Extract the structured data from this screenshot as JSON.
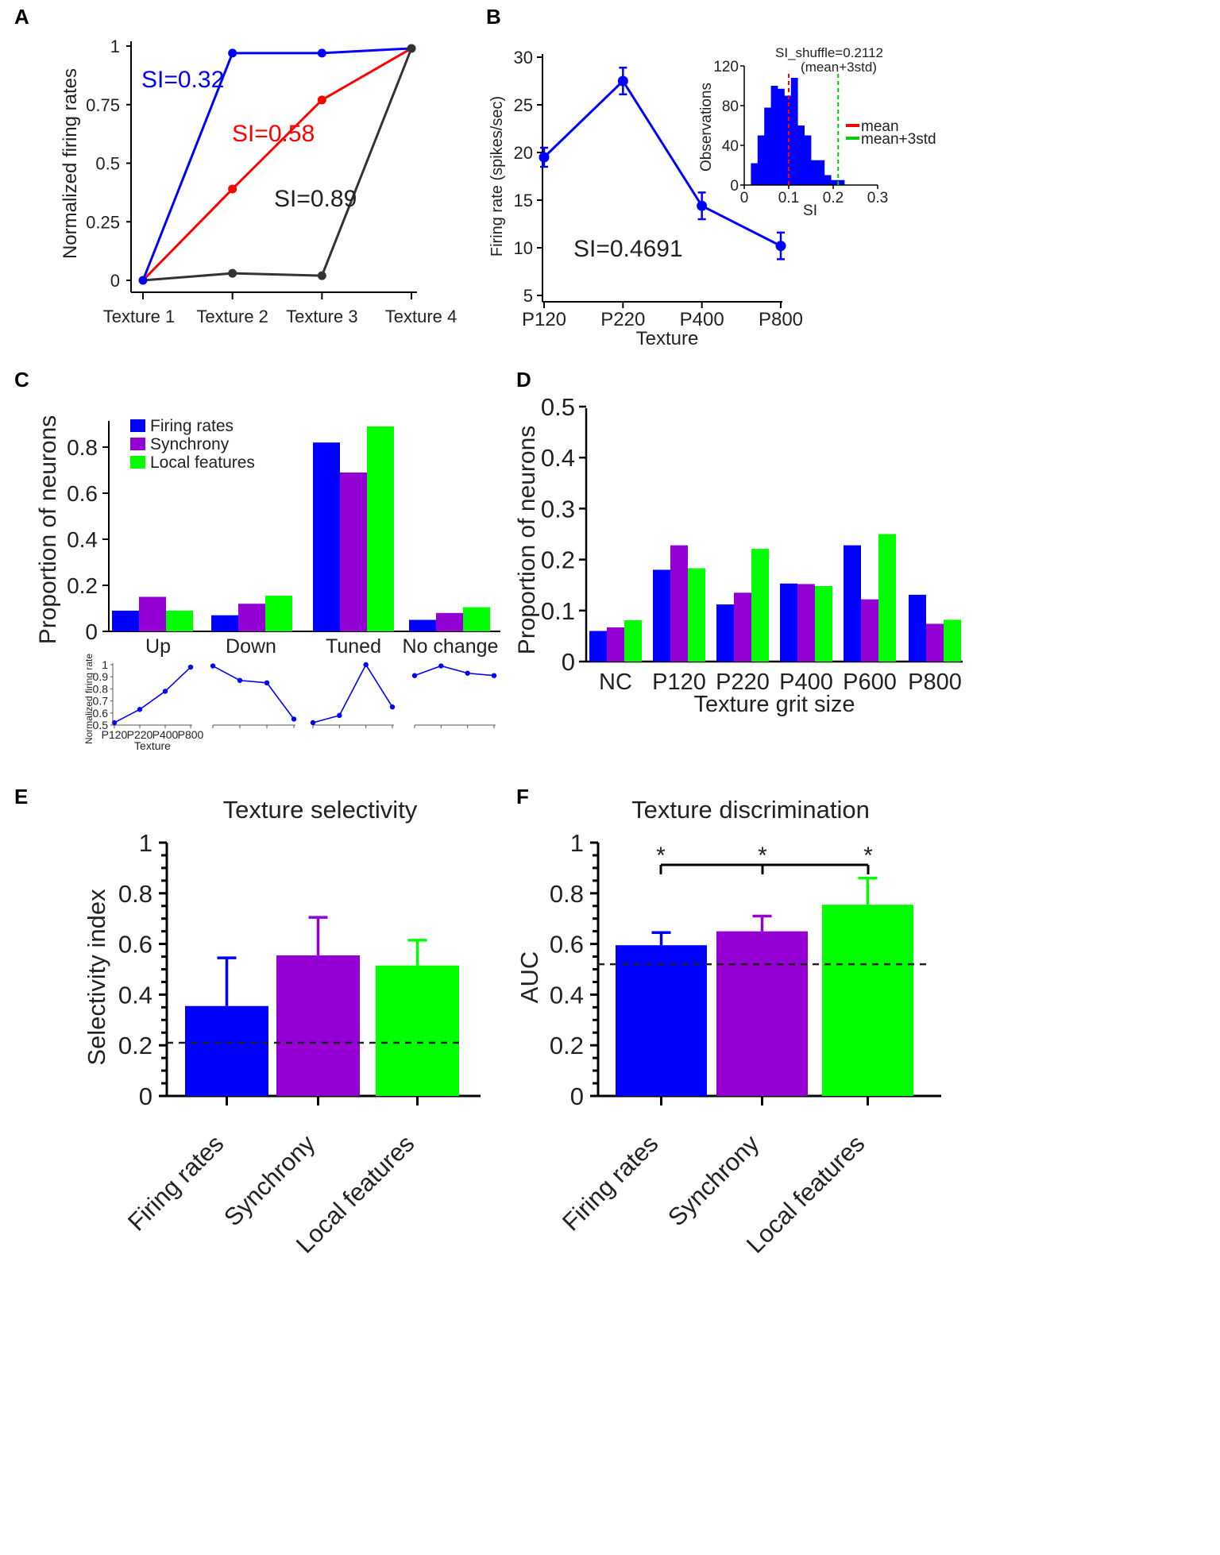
{
  "colors": {
    "blue": "#0000ff",
    "purple": "#9400d3",
    "green": "#00ff00",
    "red": "#ff0000",
    "dark": "#333333",
    "inset_hist": "#0000ff",
    "mean_line": "#ff0000",
    "std_line": "#00cc00"
  },
  "chart_data": [
    {
      "id": "A",
      "panel_label": "A",
      "type": "line",
      "title": "",
      "xlabel": "",
      "ylabel": "Normalized firing rates",
      "categories": [
        "Texture 1",
        "Texture 2",
        "Texture 3",
        "Texture 4"
      ],
      "ylim": [
        0,
        1
      ],
      "yticks": [
        0,
        0.25,
        0.5,
        0.75,
        1
      ],
      "ytick_labels": [
        "0",
        "0.25",
        "0.5",
        "0.75",
        "1"
      ],
      "series": [
        {
          "name": "SI=0.32",
          "color": "#0000ff",
          "values": [
            0,
            0.97,
            0.97,
            0.99
          ]
        },
        {
          "name": "SI=0.58",
          "color": "#ff0000",
          "values": [
            0,
            0.39,
            0.77,
            0.99
          ]
        },
        {
          "name": "SI=0.89",
          "color": "#333333",
          "values": [
            0,
            0.03,
            0.02,
            0.99
          ]
        }
      ],
      "annotations": [
        "SI=0.32",
        "SI=0.58",
        "SI=0.89"
      ]
    },
    {
      "id": "B",
      "panel_label": "B",
      "type": "line",
      "xlabel": "Texture",
      "ylabel": "Firing rate (spikes/sec)",
      "categories": [
        "P120",
        "P220",
        "P400",
        "P800"
      ],
      "ylim": [
        5,
        30
      ],
      "yticks": [
        5,
        10,
        15,
        20,
        25,
        30
      ],
      "series": [
        {
          "name": "Firing rate",
          "color": "#0000ff",
          "values": [
            19.5,
            27.5,
            14.4,
            10.2
          ],
          "errors": [
            1.0,
            1.4,
            1.4,
            1.4
          ]
        }
      ],
      "annotation": "SI=0.4691",
      "inset": {
        "type": "histogram",
        "xlabel": "SI",
        "ylabel": "Observations",
        "xlim": [
          0,
          0.3
        ],
        "xticks": [
          0,
          0.1,
          0.2,
          0.3
        ],
        "xtick_labels": [
          "0",
          "0.1",
          "0.2",
          "0.3"
        ],
        "ylim": [
          0,
          120
        ],
        "yticks": [
          0,
          40,
          80,
          120
        ],
        "bin_width": 0.015,
        "bin_starts": [
          0.015,
          0.03,
          0.045,
          0.06,
          0.075,
          0.09,
          0.105,
          0.12,
          0.135,
          0.15,
          0.165,
          0.18,
          0.195,
          0.21
        ],
        "counts": [
          22,
          50,
          78,
          100,
          97,
          90,
          108,
          60,
          50,
          25,
          25,
          10,
          5,
          5
        ],
        "mean": 0.1,
        "mean_plus_3std": 0.2112,
        "annotation_line1": "SI_shuffle=0.2112",
        "annotation_line2": "(mean+3std)",
        "legend": [
          "mean",
          "mean+3std"
        ]
      }
    },
    {
      "id": "C",
      "panel_label": "C",
      "type": "bar",
      "ylabel": "Proportion of neurons",
      "categories": [
        "Up",
        "Down",
        "Tuned",
        "No change"
      ],
      "ylim": [
        0,
        0.9
      ],
      "yticks": [
        0,
        0.2,
        0.4,
        0.6,
        0.8
      ],
      "ytick_labels": [
        "0",
        "0.2",
        "0.4",
        "0.6",
        "0.8"
      ],
      "series": [
        {
          "name": "Firing rates",
          "color": "#0000ff",
          "values": [
            0.09,
            0.07,
            0.82,
            0.05
          ]
        },
        {
          "name": "Synchrony",
          "color": "#9400d3",
          "values": [
            0.15,
            0.12,
            0.69,
            0.08
          ]
        },
        {
          "name": "Local features",
          "color": "#00ff00",
          "values": [
            0.09,
            0.155,
            0.89,
            0.105
          ]
        }
      ],
      "legend_position": "top-left",
      "mini_plots": {
        "ylabel": "Normalized firing rate",
        "xlabel": "Texture",
        "categories": [
          "P120",
          "P220",
          "P400",
          "P800"
        ],
        "ylim": [
          0.5,
          1.0
        ],
        "yticks": [
          0.5,
          0.6,
          0.7,
          0.8,
          0.9,
          1
        ],
        "ytick_labels": [
          "0.5",
          "0.6",
          "0.7",
          "0.8",
          "0.9",
          "1"
        ],
        "profiles": [
          [
            0.52,
            0.63,
            0.78,
            0.98
          ],
          [
            0.99,
            0.87,
            0.85,
            0.55
          ],
          [
            0.52,
            0.58,
            1.0,
            0.65
          ],
          [
            0.91,
            0.99,
            0.93,
            0.91
          ]
        ]
      }
    },
    {
      "id": "D",
      "panel_label": "D",
      "type": "bar",
      "xlabel": "Texture grit size",
      "ylabel": "Proportion of neurons",
      "categories": [
        "NC",
        "P120",
        "P220",
        "P400",
        "P600",
        "P800"
      ],
      "ylim": [
        0,
        0.5
      ],
      "yticks": [
        0,
        0.1,
        0.2,
        0.3,
        0.4,
        0.5
      ],
      "ytick_labels": [
        "0",
        "0.1",
        "0.2",
        "0.3",
        "0.4",
        "0.5"
      ],
      "series": [
        {
          "name": "Firing rates",
          "color": "#0000ff",
          "values": [
            0.06,
            0.18,
            0.112,
            0.153,
            0.228,
            0.131
          ]
        },
        {
          "name": "Synchrony",
          "color": "#9400d3",
          "values": [
            0.067,
            0.228,
            0.135,
            0.152,
            0.122,
            0.074
          ]
        },
        {
          "name": "Local features",
          "color": "#00ff00",
          "values": [
            0.081,
            0.183,
            0.221,
            0.148,
            0.25,
            0.082
          ]
        }
      ]
    },
    {
      "id": "E",
      "panel_label": "E",
      "type": "bar",
      "title": "Texture selectivity",
      "ylabel": "Selectivity index",
      "categories": [
        "Firing rates",
        "Synchrony",
        "Local features"
      ],
      "ylim": [
        0,
        1
      ],
      "yticks": [
        0,
        0.2,
        0.4,
        0.6,
        0.8,
        1
      ],
      "ytick_labels": [
        "0",
        "0.2",
        "0.4",
        "0.6",
        "0.8",
        "1"
      ],
      "values": [
        0.355,
        0.555,
        0.515
      ],
      "errors": [
        0.19,
        0.15,
        0.1
      ],
      "colors": [
        "#0000ff",
        "#9400d3",
        "#00ff00"
      ],
      "reference_line": 0.21
    },
    {
      "id": "F",
      "panel_label": "F",
      "type": "bar",
      "title": "Texture discrimination",
      "ylabel": "AUC",
      "categories": [
        "Firing rates",
        "Synchrony",
        "Local features"
      ],
      "ylim": [
        0,
        1
      ],
      "yticks": [
        0,
        0.2,
        0.4,
        0.6,
        0.8,
        1
      ],
      "ytick_labels": [
        "0",
        "0.2",
        "0.4",
        "0.6",
        "0.8",
        "1"
      ],
      "values": [
        0.595,
        0.65,
        0.755
      ],
      "errors": [
        0.05,
        0.06,
        0.105
      ],
      "colors": [
        "#0000ff",
        "#9400d3",
        "#00ff00"
      ],
      "reference_line": 0.52,
      "significance": [
        "*",
        "*",
        "*"
      ]
    }
  ]
}
